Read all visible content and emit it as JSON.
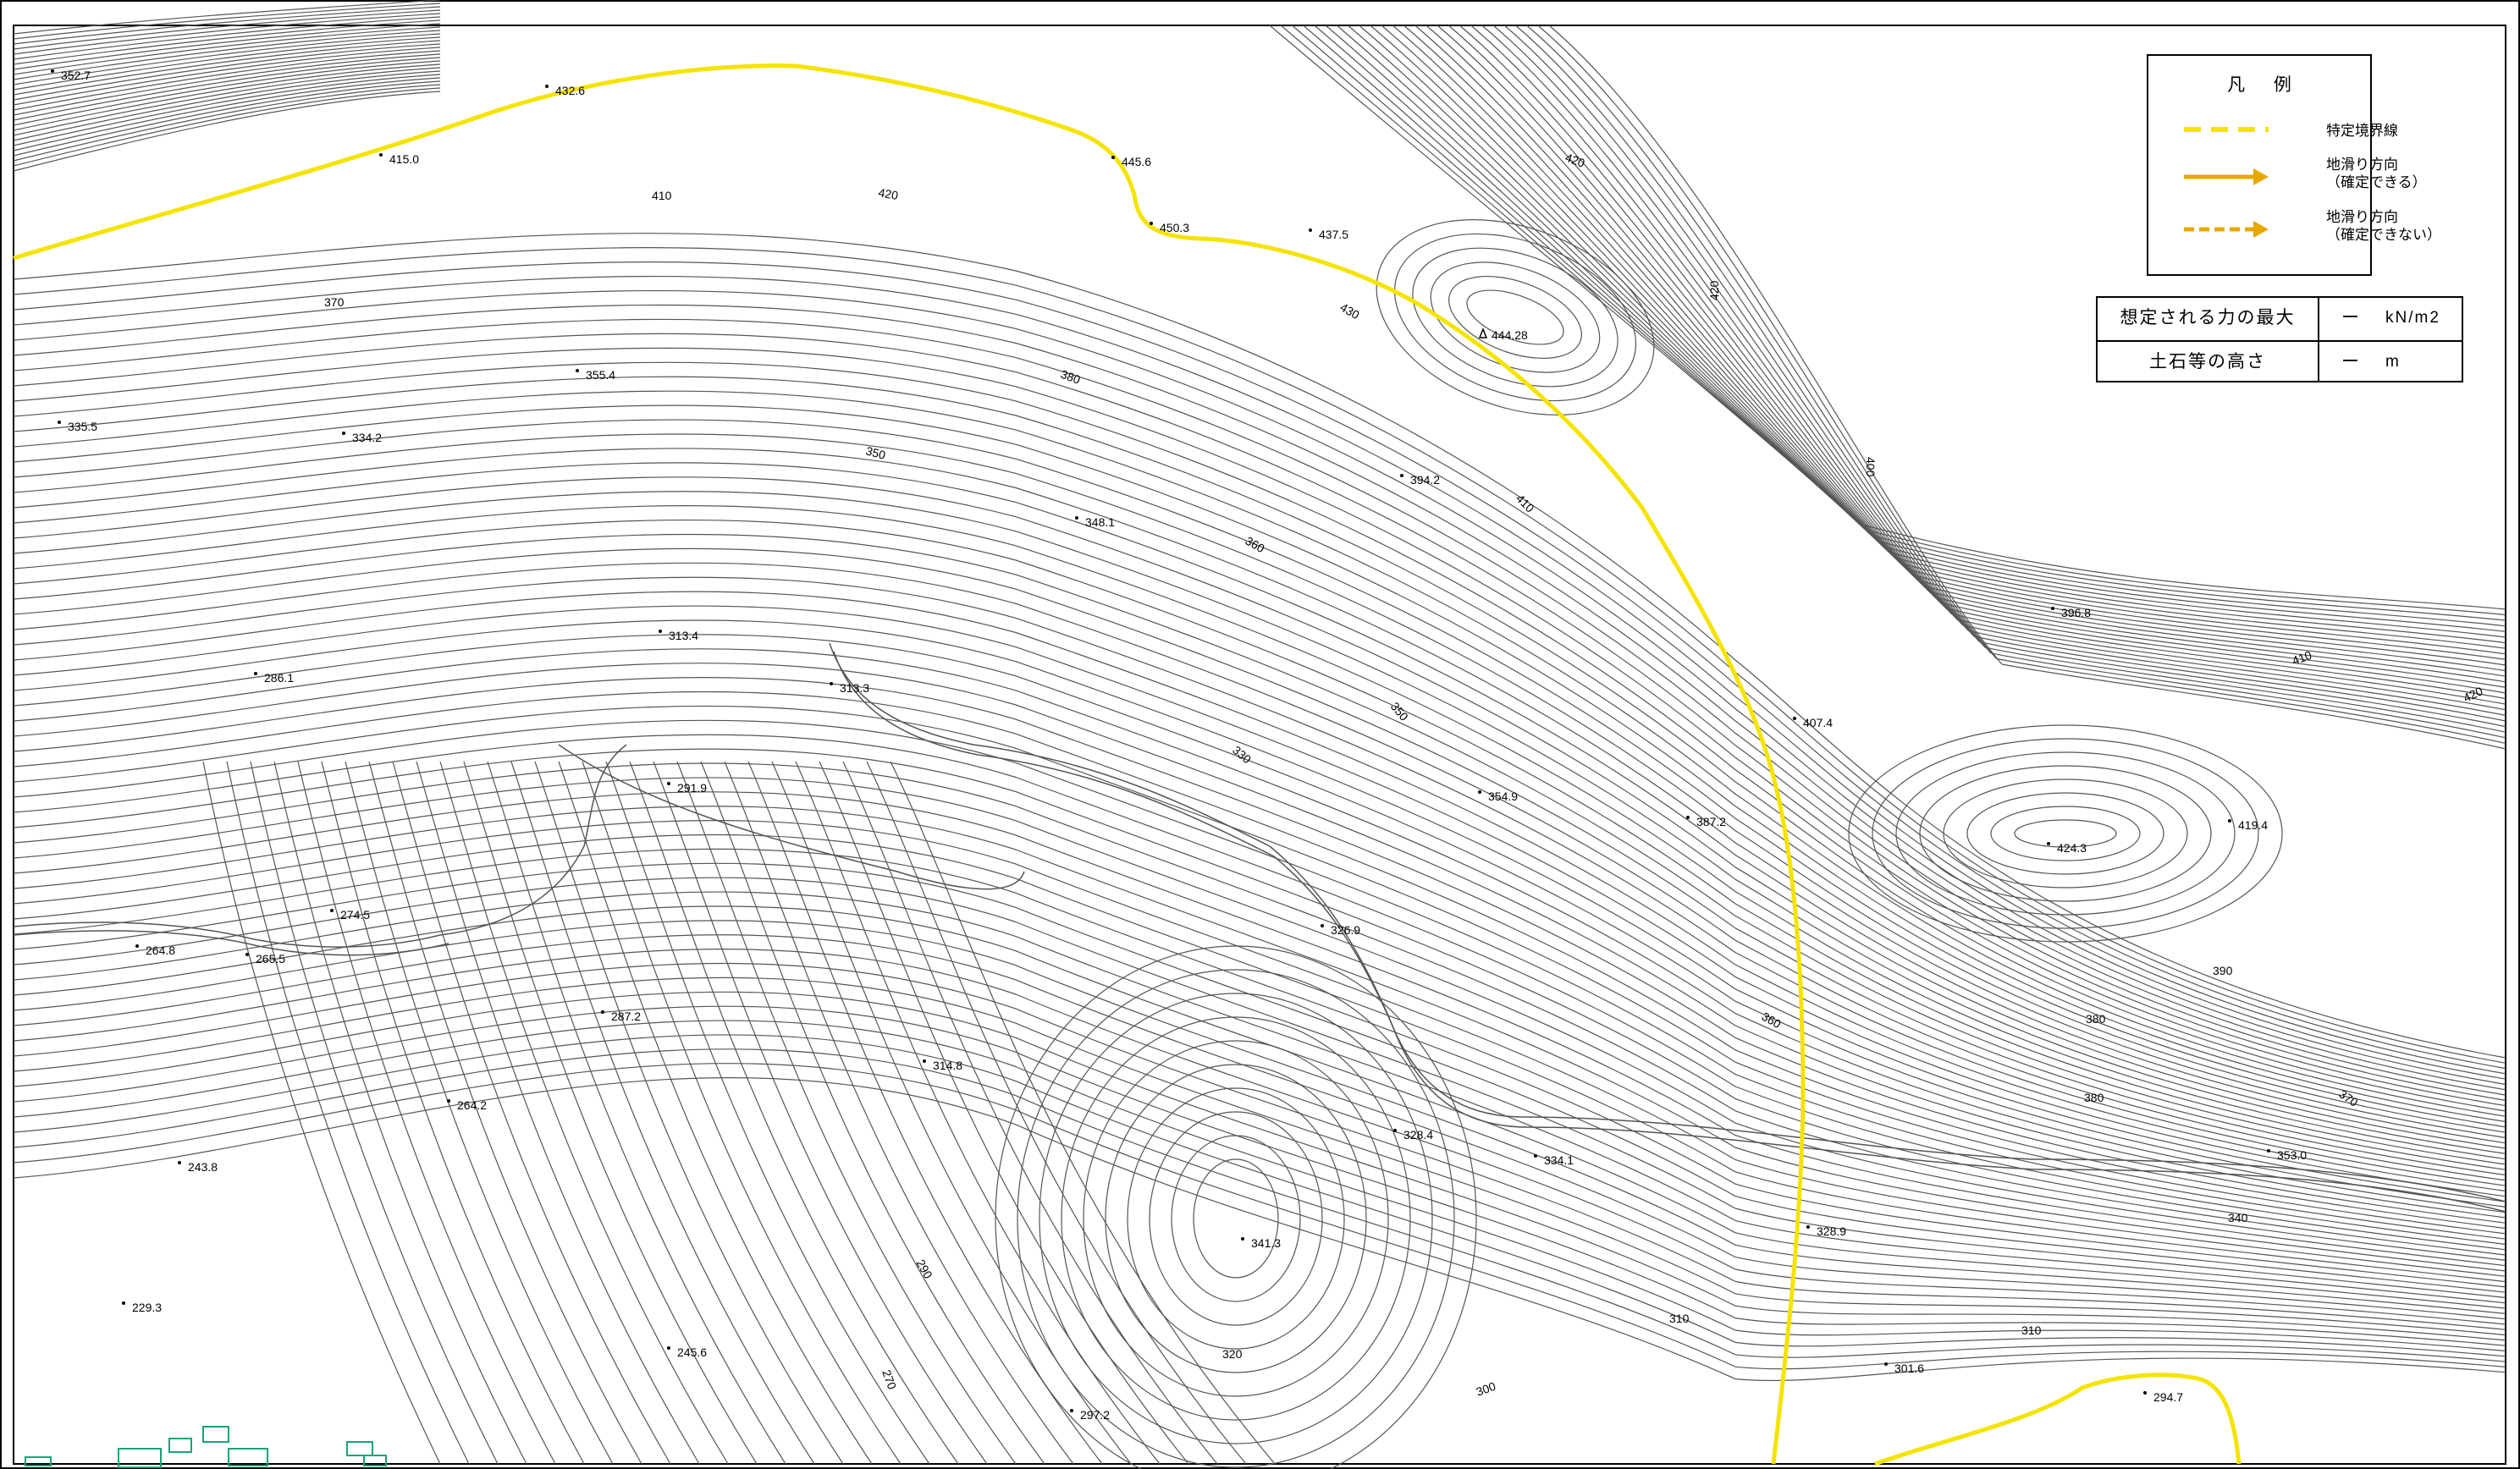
{
  "legend": {
    "title": "凡 例",
    "items": [
      {
        "label_lines": [
          "特定境界線"
        ],
        "style": "dashed",
        "color": "#f5e300",
        "icon": "dashed-line-icon"
      },
      {
        "label_lines": [
          "地滑り方向",
          "（確定できる）"
        ],
        "style": "solid-arrow",
        "color": "#e8a800",
        "icon": "solid-arrow-icon"
      },
      {
        "label_lines": [
          "地滑り方向",
          "（確定できない）"
        ],
        "style": "dashed-arrow",
        "color": "#e8a800",
        "icon": "dashed-arrow-icon"
      }
    ]
  },
  "info_table": {
    "rows": [
      {
        "label": "想定される力の最大",
        "value": "ー",
        "unit": "kN/m2"
      },
      {
        "label": "土石等の高さ",
        "value": "ー",
        "unit": "m"
      }
    ]
  },
  "colors": {
    "boundary_line": "#f5e300",
    "arrow": "#e8a800",
    "contour": "#555555",
    "building": "#19a37a"
  },
  "spot_heights": [
    "352.7",
    "432.6",
    "415.0",
    "445.6",
    "450.3",
    "437.5",
    "444.28",
    "335.5",
    "334.2",
    "355.4",
    "394.2",
    "348.1",
    "313.4",
    "286.1",
    "313.3",
    "396.8",
    "407.4",
    "291.9",
    "354.9",
    "387.2",
    "424.3",
    "419.4",
    "274.5",
    "264.8",
    "265.5",
    "326.9",
    "287.2",
    "314.8",
    "264.2",
    "328.4",
    "334.1",
    "353.0",
    "243.8",
    "341.3",
    "328.9",
    "229.3",
    "245.6",
    "301.6",
    "294.7",
    "297.2"
  ],
  "contour_labels": [
    "420",
    "410",
    "420",
    "370",
    "430",
    "420",
    "380",
    "400",
    "350",
    "410",
    "360",
    "350",
    "330",
    "410",
    "420",
    "390",
    "380",
    "360",
    "370",
    "380",
    "340",
    "290",
    "270",
    "320",
    "310",
    "310",
    "300"
  ]
}
